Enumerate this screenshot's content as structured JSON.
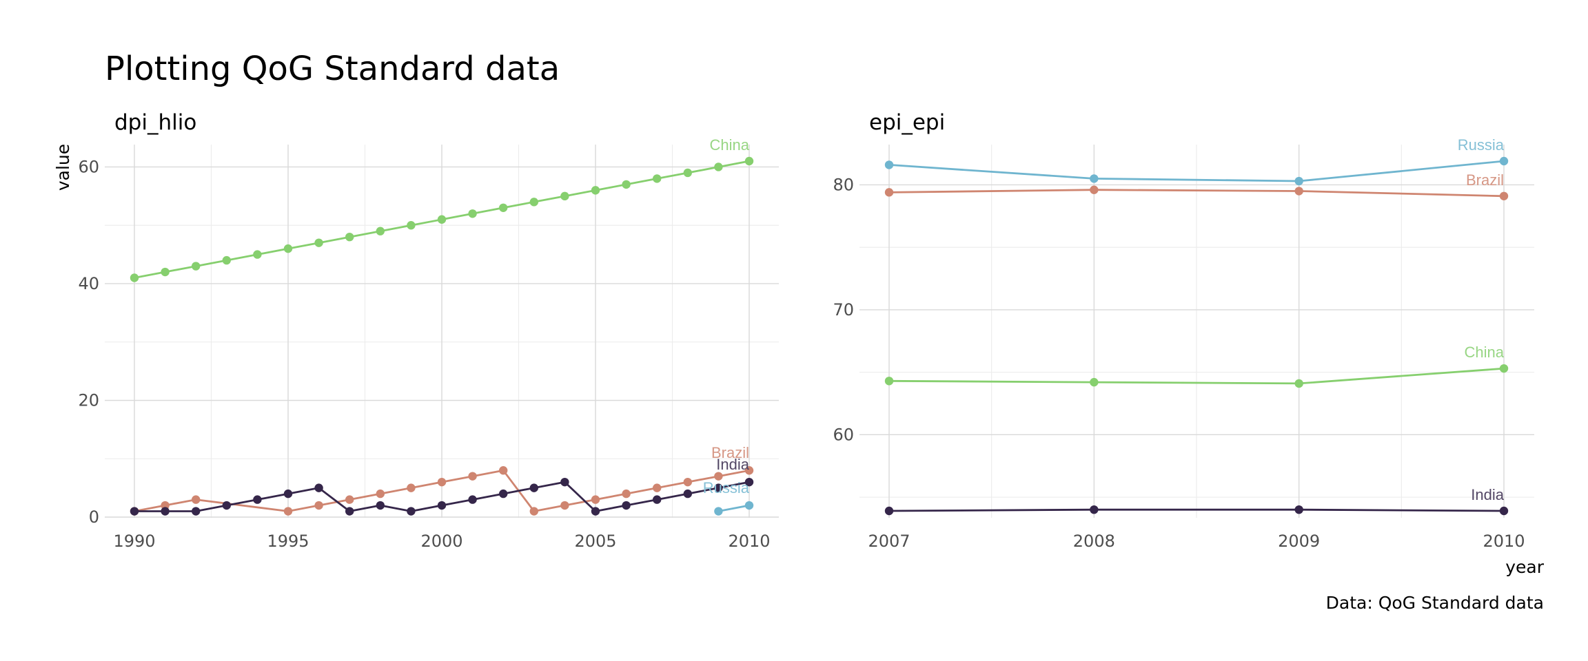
{
  "title": "Plotting QoG Standard data",
  "caption": "Data: QoG Standard data",
  "ylabel": "value",
  "xlabel": "year",
  "colors": {
    "China": "#86cf6e",
    "Brazil": "#cf8570",
    "India": "#35264a",
    "Russia": "#6fb5cf"
  },
  "chart_data": [
    {
      "type": "line",
      "panel": "dpi_hlio",
      "xlim": [
        1990,
        2010
      ],
      "ylim": [
        0,
        61
      ],
      "xticks": [
        1990,
        1995,
        2000,
        2005,
        2010
      ],
      "yticks": [
        0,
        20,
        40,
        60
      ],
      "grid": true,
      "series": [
        {
          "name": "China",
          "x": [
            1990,
            1991,
            1992,
            1993,
            1994,
            1995,
            1996,
            1997,
            1998,
            1999,
            2000,
            2001,
            2002,
            2003,
            2004,
            2005,
            2006,
            2007,
            2008,
            2009,
            2010
          ],
          "y": [
            41,
            42,
            43,
            44,
            45,
            46,
            47,
            48,
            49,
            50,
            51,
            52,
            53,
            54,
            55,
            56,
            57,
            58,
            59,
            60,
            61
          ]
        },
        {
          "name": "Brazil",
          "x": [
            1990,
            1991,
            1992,
            1995,
            1996,
            1997,
            1998,
            1999,
            2000,
            2001,
            2002,
            2003,
            2004,
            2005,
            2006,
            2007,
            2008,
            2009,
            2010
          ],
          "y": [
            1,
            2,
            3,
            1,
            2,
            3,
            4,
            5,
            6,
            7,
            8,
            1,
            2,
            3,
            4,
            5,
            6,
            7,
            8
          ]
        },
        {
          "name": "India",
          "x": [
            1990,
            1991,
            1992,
            1993,
            1994,
            1995,
            1996,
            1997,
            1998,
            1999,
            2000,
            2001,
            2002,
            2003,
            2004,
            2005,
            2006,
            2007,
            2008,
            2009,
            2010
          ],
          "y": [
            1,
            1,
            1,
            2,
            3,
            4,
            5,
            1,
            2,
            1,
            2,
            3,
            4,
            5,
            6,
            1,
            2,
            3,
            4,
            5,
            6
          ]
        },
        {
          "name": "Russia",
          "x": [
            2009,
            2010
          ],
          "y": [
            1,
            2
          ]
        }
      ]
    },
    {
      "type": "line",
      "panel": "epi_epi",
      "xlim": [
        2007,
        2010
      ],
      "ylim": [
        53.9,
        81.9
      ],
      "xticks": [
        2007,
        2008,
        2009,
        2010
      ],
      "yticks": [
        60,
        70,
        80
      ],
      "grid": true,
      "series": [
        {
          "name": "Russia",
          "x": [
            2007,
            2008,
            2009,
            2010
          ],
          "y": [
            81.6,
            80.5,
            80.3,
            81.9
          ]
        },
        {
          "name": "Brazil",
          "x": [
            2007,
            2008,
            2009,
            2010
          ],
          "y": [
            79.4,
            79.6,
            79.5,
            79.1
          ]
        },
        {
          "name": "China",
          "x": [
            2007,
            2008,
            2009,
            2010
          ],
          "y": [
            64.3,
            64.2,
            64.1,
            65.3
          ]
        },
        {
          "name": "India",
          "x": [
            2007,
            2008,
            2009,
            2010
          ],
          "y": [
            53.9,
            54.0,
            54.0,
            53.9
          ]
        }
      ]
    }
  ]
}
